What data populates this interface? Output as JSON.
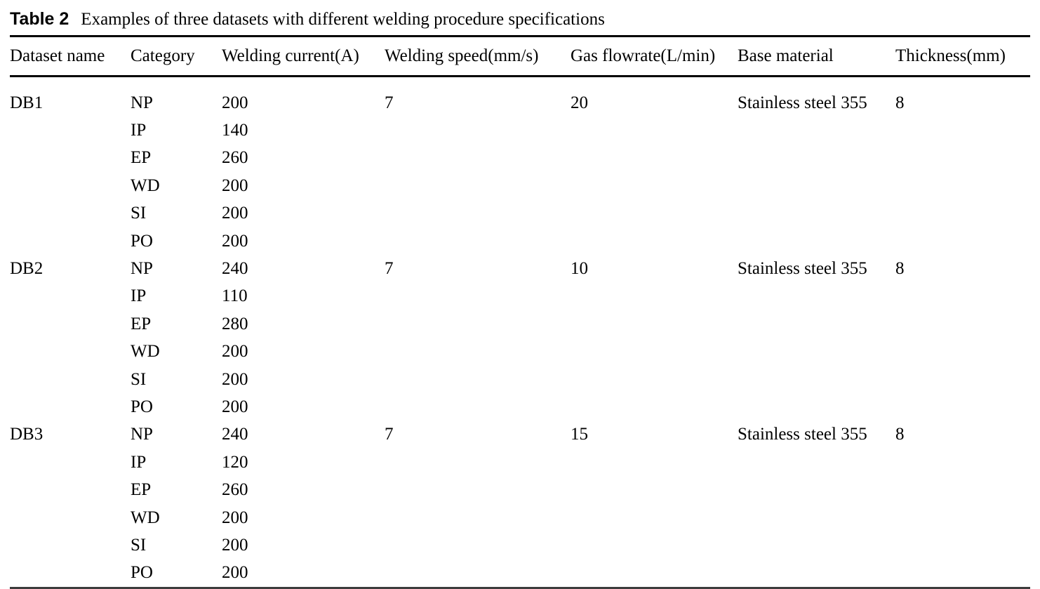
{
  "caption": {
    "label": "Table 2",
    "text": "Examples of three datasets with different welding procedure specifications"
  },
  "colors": {
    "text": "#000000",
    "rule": "#000000",
    "background": "#ffffff"
  },
  "table": {
    "columns": [
      "Dataset name",
      "Category",
      "Welding current(A)",
      "Welding speed(mm/s)",
      "Gas flowrate(L/min)",
      "Base material",
      "Thickness(mm)"
    ],
    "groups": [
      {
        "dataset": "DB1",
        "welding_speed": "7",
        "gas_flowrate": "20",
        "base_material": "Stainless steel 355",
        "thickness": "8",
        "rows": [
          {
            "category": "NP",
            "current": "200"
          },
          {
            "category": "IP",
            "current": "140"
          },
          {
            "category": "EP",
            "current": "260"
          },
          {
            "category": "WD",
            "current": "200"
          },
          {
            "category": "SI",
            "current": "200"
          },
          {
            "category": "PO",
            "current": "200"
          }
        ]
      },
      {
        "dataset": "DB2",
        "welding_speed": "7",
        "gas_flowrate": "10",
        "base_material": "Stainless steel 355",
        "thickness": "8",
        "rows": [
          {
            "category": "NP",
            "current": "240"
          },
          {
            "category": "IP",
            "current": "110"
          },
          {
            "category": "EP",
            "current": "280"
          },
          {
            "category": "WD",
            "current": "200"
          },
          {
            "category": "SI",
            "current": "200"
          },
          {
            "category": "PO",
            "current": "200"
          }
        ]
      },
      {
        "dataset": "DB3",
        "welding_speed": "7",
        "gas_flowrate": "15",
        "base_material": "Stainless steel 355",
        "thickness": "8",
        "rows": [
          {
            "category": "NP",
            "current": "240"
          },
          {
            "category": "IP",
            "current": "120"
          },
          {
            "category": "EP",
            "current": "260"
          },
          {
            "category": "WD",
            "current": "200"
          },
          {
            "category": "SI",
            "current": "200"
          },
          {
            "category": "PO",
            "current": "200"
          }
        ]
      }
    ]
  }
}
